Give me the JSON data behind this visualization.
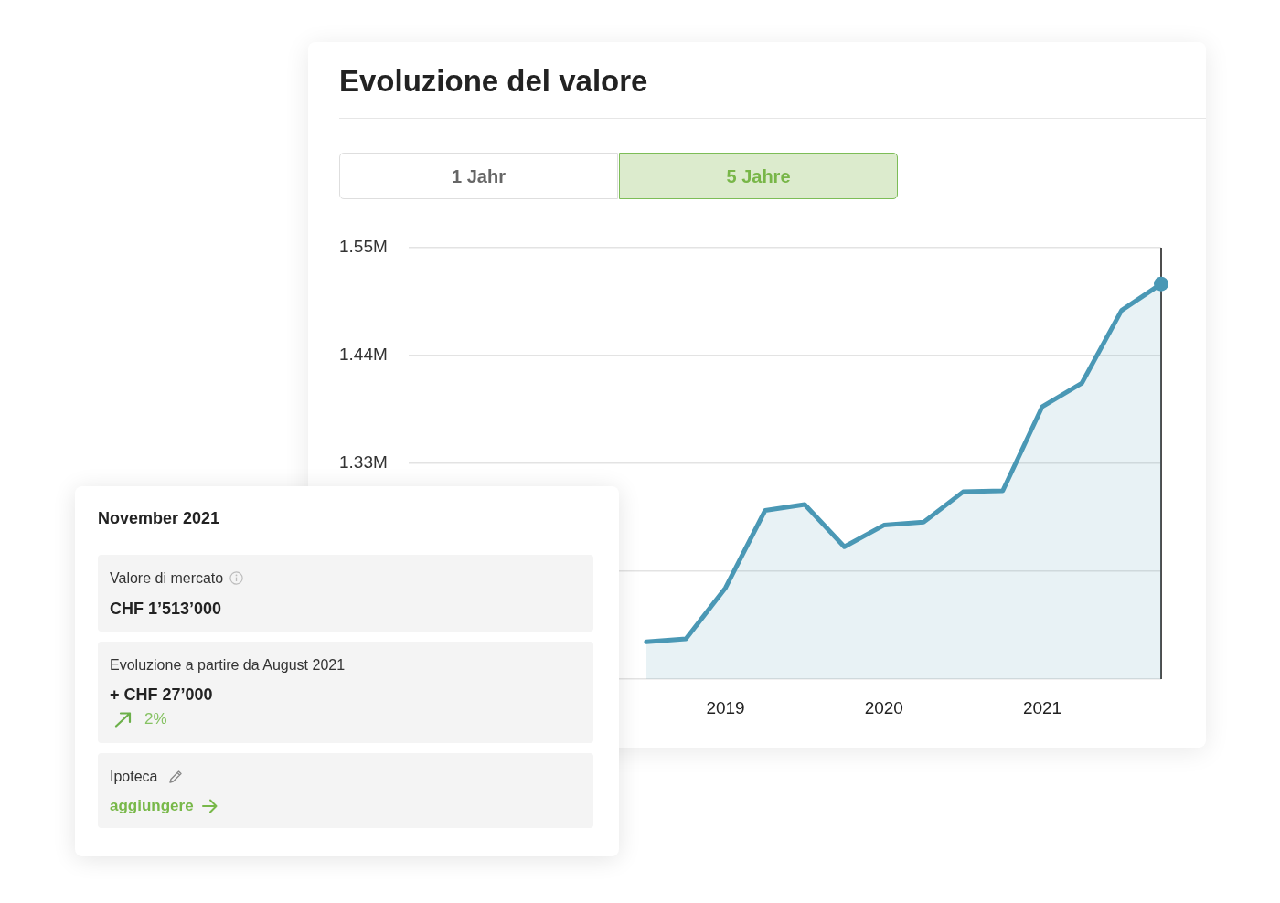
{
  "chart_data": {
    "type": "area",
    "title": "Evoluzione del valore",
    "annotations": [
      "1 Jahr",
      "5 Jahre",
      "November 2021",
      "Valore di mercato",
      "CHF 1’513’000",
      "Evoluzione a partire da August 2021",
      "+ CHF 27’000",
      "2%",
      "Ipoteca",
      "aggiungere"
    ],
    "series": [
      {
        "color": "#4a98b5",
        "x": [
          "2018-08",
          "2018-11",
          "2019-02",
          "2019-05",
          "2019-08",
          "2019-11",
          "2020-02",
          "2020-05",
          "2020-08",
          "2020-11",
          "2021-02",
          "2021-05",
          "2021-08",
          "2021-11"
        ],
        "values": [
          1148000,
          1151000,
          1203000,
          1282000,
          1288000,
          1245000,
          1267000,
          1270000,
          1301000,
          1302000,
          1388000,
          1412000,
          1486000,
          1513000
        ]
      },
      {
        "type": "scatter",
        "color": "#4a98b5",
        "marker": "circle",
        "x": [
          "2021-11"
        ],
        "values": [
          1513000
        ]
      }
    ],
    "xlim": [
      "2017-02",
      "2021-11"
    ],
    "xticks": [
      {
        "value": "2019-02",
        "label": "2019"
      },
      {
        "value": "2020-02",
        "label": "2020"
      },
      {
        "value": "2021-02",
        "label": "2021"
      }
    ],
    "ylim": [
      1110000,
      1550000
    ],
    "yticks": [
      {
        "value": 1110000,
        "label": null
      },
      {
        "value": 1220000,
        "label": null
      },
      {
        "value": 1330000,
        "label": "1.33M"
      },
      {
        "value": 1440000,
        "label": "1.44M"
      },
      {
        "value": 1550000,
        "label": "1.55M"
      }
    ],
    "grid": "y",
    "ref_lines": [
      {
        "axis": "x",
        "value": "2021-11",
        "color": "#4d4d4d"
      }
    ]
  }
}
